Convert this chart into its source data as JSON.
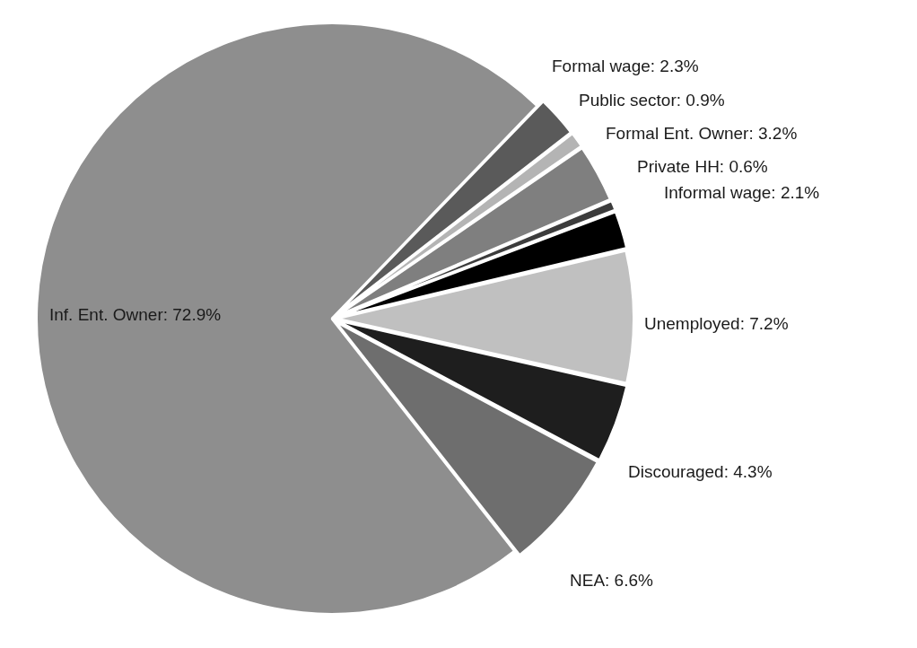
{
  "chart_data": {
    "type": "pie",
    "categories": [
      "Formal wage",
      "Public sector",
      "Formal Ent. Owner",
      "Private HH",
      "Informal wage",
      "Unemployed",
      "Discouraged",
      "NEA",
      "Inf. Ent. Owner"
    ],
    "values": [
      2.3,
      0.9,
      3.2,
      0.6,
      2.1,
      7.2,
      4.3,
      6.6,
      72.9
    ],
    "value_labels": [
      "2.3%",
      "0.9%",
      "3.2%",
      "0.6%",
      "2.1%",
      "7.2%",
      "4.3%",
      "6.6%",
      "72.9%"
    ],
    "colors": [
      "#5a5a5a",
      "#b4b4b4",
      "#7f7f7f",
      "#3c3c3c",
      "#000000",
      "#c0c0c0",
      "#1e1e1e",
      "#6e6e6e",
      "#8e8e8e"
    ],
    "legend": false
  }
}
